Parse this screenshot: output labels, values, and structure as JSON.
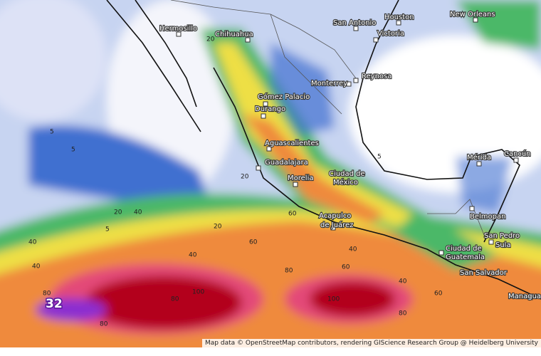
{
  "cities": [
    "Hermosillo",
    "Chihuahua",
    "San Antonio",
    "Houston",
    "Victoria",
    "New Orleans",
    "Reynosa",
    "Monterrey",
    "Gómez Palacio",
    "Durango",
    "Aguascalientes",
    "Guadalajara",
    "Morelia",
    "Ciudad de",
    "México",
    "Acapulco",
    "de Juárez",
    "Mérida",
    "Cancún",
    "Belmopan",
    "San Pedro",
    "Sula",
    "Ciudad de",
    "Guatemala",
    "San Salvador",
    "Managua"
  ],
  "contour_labels": [
    "5",
    "5",
    "5",
    "5",
    "20",
    "20",
    "20",
    "20",
    "40",
    "40",
    "40",
    "40",
    "40",
    "40",
    "60",
    "60",
    "60",
    "60",
    "80",
    "80",
    "80",
    "80",
    "80",
    "100",
    "100"
  ],
  "max_label": "32",
  "attribution": "Map data © OpenStreetMap contributors, rendering GIScience Research Group @ Heidelberg University"
}
